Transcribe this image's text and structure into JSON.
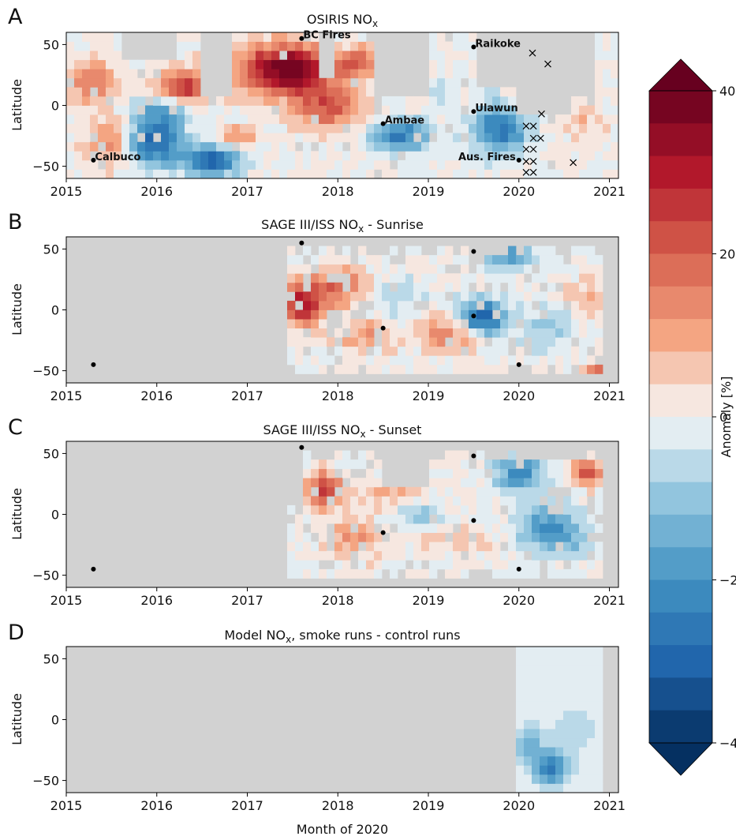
{
  "chart_data": {
    "type": "heatmap",
    "x_range": [
      2015,
      2021.1
    ],
    "y_range": [
      -60,
      60
    ],
    "x_ticks": [
      "2015",
      "2016",
      "2017",
      "2018",
      "2019",
      "2020",
      "2021"
    ],
    "y_ticks": [
      "50",
      "0",
      "−50"
    ],
    "xlabel": "Month of 2020",
    "ylabel": "Latitude",
    "colorbar": {
      "label": "Anomaly [%]",
      "range": [
        -40,
        40
      ],
      "ticks": [
        "40",
        "20",
        "0",
        "−20",
        "−40"
      ],
      "colormap": "RdBu_r",
      "levels": 20
    },
    "no_data_color": "#d2d2d2",
    "panels": [
      {
        "letter": "A",
        "title_main": "OSIRIS NO",
        "title_sub": "x",
        "title_rest": "",
        "events": [
          {
            "name": "BC Fires",
            "x": 2017.6,
            "y": 55
          },
          {
            "name": "Raikoke",
            "x": 2019.5,
            "y": 48
          },
          {
            "name": "Ulawun",
            "x": 2019.5,
            "y": -5
          },
          {
            "name": "Ambae",
            "x": 2018.5,
            "y": -15
          },
          {
            "name": "Calbuco",
            "x": 2015.3,
            "y": -45
          },
          {
            "name": "Aus. Fires",
            "x": 2020.0,
            "y": -45
          }
        ],
        "markers": [
          {
            "x": 2020.15,
            "y": 43
          },
          {
            "x": 2020.32,
            "y": 34
          },
          {
            "x": 2020.25,
            "y": -7
          },
          {
            "x": 2020.08,
            "y": -17
          },
          {
            "x": 2020.16,
            "y": -17
          },
          {
            "x": 2020.16,
            "y": -27
          },
          {
            "x": 2020.24,
            "y": -27
          },
          {
            "x": 2020.08,
            "y": -36
          },
          {
            "x": 2020.16,
            "y": -36
          },
          {
            "x": 2020.08,
            "y": -46
          },
          {
            "x": 2020.16,
            "y": -46
          },
          {
            "x": 2020.08,
            "y": -55
          },
          {
            "x": 2020.16,
            "y": -55
          },
          {
            "x": 2020.6,
            "y": -47
          }
        ]
      },
      {
        "letter": "B",
        "title_main": "SAGE III/ISS NO",
        "title_sub": "x",
        "title_rest": " - Sunrise",
        "events": [
          {
            "x": 2017.6,
            "y": 55
          },
          {
            "x": 2019.5,
            "y": 48
          },
          {
            "x": 2019.5,
            "y": -5
          },
          {
            "x": 2018.5,
            "y": -15
          },
          {
            "x": 2015.3,
            "y": -45
          },
          {
            "x": 2020.0,
            "y": -45
          }
        ]
      },
      {
        "letter": "C",
        "title_main": "SAGE III/ISS NO",
        "title_sub": "x",
        "title_rest": " - Sunset",
        "events": [
          {
            "x": 2017.6,
            "y": 55
          },
          {
            "x": 2019.5,
            "y": 48
          },
          {
            "x": 2019.5,
            "y": -5
          },
          {
            "x": 2018.5,
            "y": -15
          },
          {
            "x": 2015.3,
            "y": -45
          },
          {
            "x": 2020.0,
            "y": -45
          }
        ]
      },
      {
        "letter": "D",
        "title_main": "Model NO",
        "title_sub": "x",
        "title_rest": ", smoke runs - control runs",
        "events": []
      }
    ]
  }
}
